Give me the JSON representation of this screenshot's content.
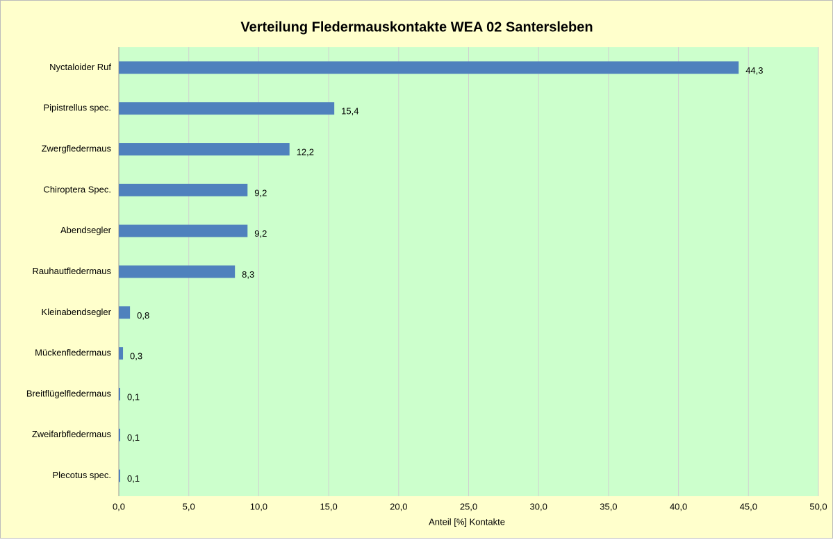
{
  "chart_data": {
    "type": "bar",
    "orientation": "horizontal",
    "title": "Verteilung Fledermauskontakte WEA 02 Santersleben",
    "xlabel": "Anteil [%] Kontakte",
    "categories": [
      "Nyctaloider Ruf",
      "Pipistrellus spec.",
      "Zwergfledermaus",
      "Chiroptera Spec.",
      "Abendsegler",
      "Rauhautfledermaus",
      "Kleinabendsegler",
      "Mückenfledermaus",
      "Breitflügelfledermaus",
      "Zweifarbfledermaus",
      "Plecotus spec."
    ],
    "values": [
      44.3,
      15.4,
      12.2,
      9.2,
      9.2,
      8.3,
      0.8,
      0.3,
      0.1,
      0.1,
      0.1
    ],
    "value_labels": [
      "44,3",
      "15,4",
      "12,2",
      "9,2",
      "9,2",
      "8,3",
      "0,8",
      "0,3",
      "0,1",
      "0,1",
      "0,1"
    ],
    "color": "#4F81BD",
    "xlim": [
      0,
      50
    ],
    "xticks": [
      {
        "value": 0,
        "label": "0,0"
      },
      {
        "value": 5,
        "label": "5,0"
      },
      {
        "value": 10,
        "label": "10,0"
      },
      {
        "value": 15,
        "label": "15,0"
      },
      {
        "value": 20,
        "label": "20,0"
      },
      {
        "value": 25,
        "label": "25,0"
      },
      {
        "value": 30,
        "label": "30,0"
      },
      {
        "value": 35,
        "label": "35,0"
      },
      {
        "value": 40,
        "label": "40,0"
      },
      {
        "value": 45,
        "label": "45,0"
      },
      {
        "value": 50,
        "label": "50,0"
      }
    ],
    "grid": true
  }
}
